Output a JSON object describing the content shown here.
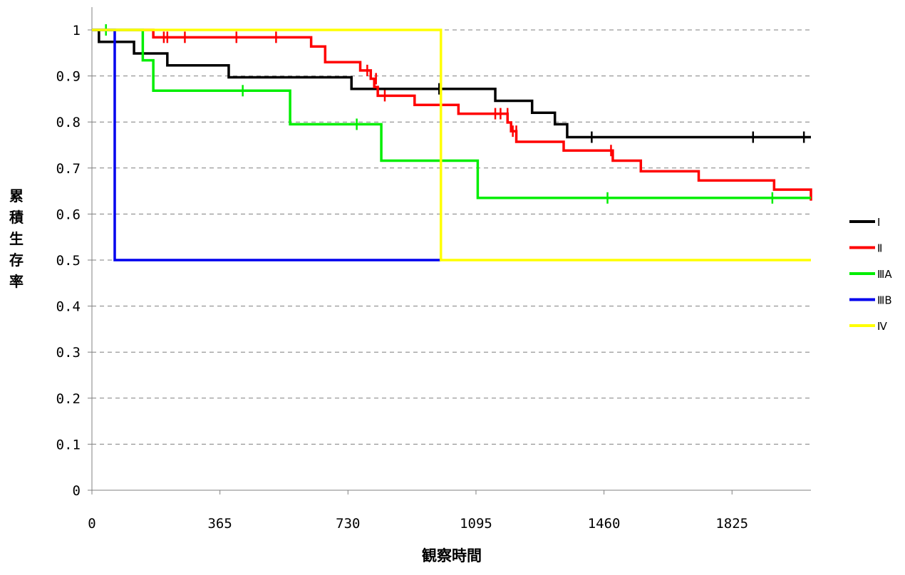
{
  "chart_data": {
    "type": "line",
    "step": true,
    "xlabel": "観察時間",
    "ylabel": "累積生存率",
    "xlim": [
      0,
      2050
    ],
    "ylim": [
      0,
      1
    ],
    "xticks": [
      0,
      365,
      730,
      1095,
      1460,
      1825
    ],
    "yticks": [
      0,
      0.1,
      0.2,
      0.3,
      0.4,
      0.5,
      0.6,
      0.7,
      0.8,
      0.9,
      1
    ],
    "ytick_labels": [
      "0",
      "0.1",
      "0.2",
      "0.3",
      "0.4",
      "0.5",
      "0.6",
      "0.7",
      "0.8",
      "0.9",
      "1"
    ],
    "grid": "horizontal dashed",
    "legend_position": "right",
    "series": [
      {
        "name": "Ⅰ",
        "color": "#000000",
        "steps": [
          [
            0,
            1
          ],
          [
            20,
            0.974
          ],
          [
            120,
            0.949
          ],
          [
            215,
            0.923
          ],
          [
            390,
            0.897
          ],
          [
            740,
            0.872
          ],
          [
            1150,
            0.846
          ],
          [
            1255,
            0.82
          ],
          [
            1320,
            0.795
          ],
          [
            1355,
            0.767
          ],
          [
            2050,
            0.767
          ]
        ],
        "censored": [
          [
            990,
            0.872
          ],
          [
            1425,
            0.767
          ],
          [
            1885,
            0.767
          ],
          [
            2030,
            0.767
          ]
        ]
      },
      {
        "name": "Ⅱ",
        "color": "#ff0000",
        "steps": [
          [
            0,
            1
          ],
          [
            175,
            0.984
          ],
          [
            625,
            0.964
          ],
          [
            665,
            0.93
          ],
          [
            765,
            0.912
          ],
          [
            795,
            0.894
          ],
          [
            805,
            0.876
          ],
          [
            815,
            0.857
          ],
          [
            920,
            0.837
          ],
          [
            1045,
            0.818
          ],
          [
            1185,
            0.799
          ],
          [
            1195,
            0.78
          ],
          [
            1210,
            0.757
          ],
          [
            1345,
            0.738
          ],
          [
            1485,
            0.716
          ],
          [
            1565,
            0.693
          ],
          [
            1730,
            0.673
          ],
          [
            1945,
            0.653
          ],
          [
            2050,
            0.629
          ]
        ],
        "censored": [
          [
            205,
            0.984
          ],
          [
            215,
            0.984
          ],
          [
            265,
            0.984
          ],
          [
            412,
            0.984
          ],
          [
            525,
            0.984
          ],
          [
            785,
            0.912
          ],
          [
            810,
            0.894
          ],
          [
            835,
            0.857
          ],
          [
            1150,
            0.818
          ],
          [
            1165,
            0.818
          ],
          [
            1185,
            0.818
          ],
          [
            1200,
            0.78
          ],
          [
            1210,
            0.78
          ],
          [
            1480,
            0.738
          ]
        ]
      },
      {
        "name": "ⅢA",
        "color": "#00ee00",
        "steps": [
          [
            0,
            1
          ],
          [
            145,
            0.934
          ],
          [
            175,
            0.868
          ],
          [
            565,
            0.795
          ],
          [
            825,
            0.716
          ],
          [
            1100,
            0.635
          ],
          [
            2050,
            0.635
          ]
        ],
        "censored": [
          [
            40,
            1
          ],
          [
            430,
            0.868
          ],
          [
            755,
            0.795
          ],
          [
            1470,
            0.635
          ],
          [
            1940,
            0.635
          ]
        ]
      },
      {
        "name": "ⅢB",
        "color": "#0000ee",
        "steps": [
          [
            0,
            1
          ],
          [
            65,
            0.5
          ],
          [
            995,
            0.5
          ]
        ],
        "censored": []
      },
      {
        "name": "Ⅳ",
        "color": "#ffff00",
        "steps": [
          [
            0,
            1
          ],
          [
            995,
            0.5
          ],
          [
            2050,
            0.5
          ]
        ],
        "censored": []
      }
    ]
  }
}
